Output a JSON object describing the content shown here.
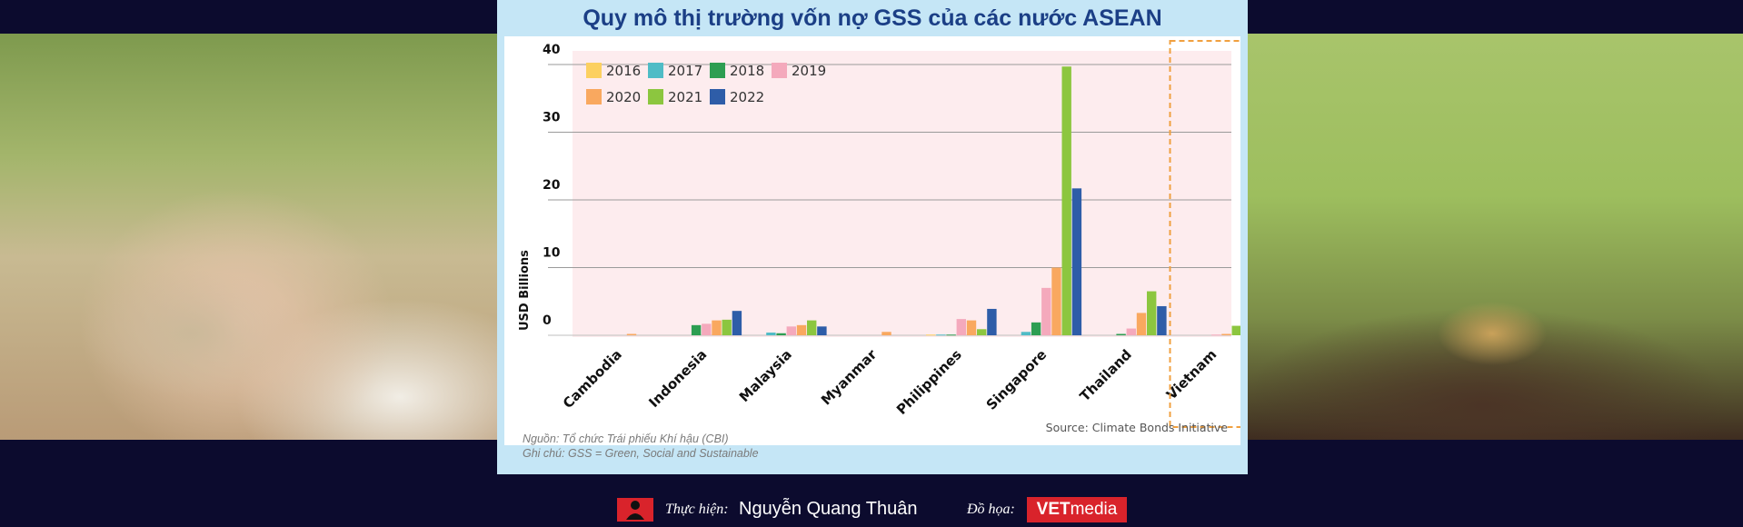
{
  "title": "Quy mô thị trường vốn nợ GSS của các nước ASEAN",
  "footnotes": {
    "source_vi": "Nguồn: Tổ chức Trái phiếu Khí hậu (CBI)",
    "note_vi": "Ghi chú: GSS = Green, Social and Sustainable",
    "source_en": "Source: Climate Bonds Initiative"
  },
  "credit": {
    "author_label": "Thực hiện:",
    "author_name": "Nguyễn Quang Thuân",
    "graphics_label": "Đồ họa:",
    "brand_bold": "VET",
    "brand_light": "media"
  },
  "images": {
    "left": "hands holding coins with a plant sprout",
    "right": "plant growing from stack of coins in soil"
  },
  "colors": {
    "title": "#1b3f86",
    "panel": "#c5e6f6",
    "plot_bg": "#fdecee",
    "highlight_box": "#f0a040",
    "brand": "#d9232b"
  },
  "chart_data": {
    "type": "bar",
    "title": "",
    "xlabel": "",
    "ylabel": "USD Billions",
    "ylim": [
      0,
      40
    ],
    "yticks": [
      "0",
      "10",
      "20",
      "30",
      "40"
    ],
    "grid": true,
    "legend_position": "top-left",
    "categories": [
      "Cambodia",
      "Indonesia",
      "Malaysia",
      "Myanmar",
      "Philippines",
      "Singapore",
      "Thailand",
      "Vietnam"
    ],
    "highlight_category": "Vietnam",
    "series": [
      {
        "name": "2016",
        "color": "#fcd060",
        "values": [
          0,
          0,
          0,
          0,
          0.1,
          0,
          0,
          0
        ]
      },
      {
        "name": "2017",
        "color": "#4fbcc6",
        "values": [
          0,
          0,
          0.4,
          0,
          0.1,
          0.5,
          0,
          0
        ]
      },
      {
        "name": "2018",
        "color": "#2d9e52",
        "values": [
          0,
          1.5,
          0.3,
          0,
          0.1,
          1.9,
          0.2,
          0
        ]
      },
      {
        "name": "2019",
        "color": "#f4a9bc",
        "values": [
          0,
          1.7,
          1.3,
          0,
          2.4,
          7.0,
          1.0,
          0.1
        ]
      },
      {
        "name": "2020",
        "color": "#f9a85f",
        "values": [
          0.2,
          2.2,
          1.5,
          0.5,
          2.2,
          10.0,
          3.3,
          0.2
        ]
      },
      {
        "name": "2021",
        "color": "#8cc63f",
        "values": [
          0,
          2.3,
          2.2,
          0,
          0.9,
          39.7,
          6.5,
          1.4
        ]
      },
      {
        "name": "2022",
        "color": "#2e5da8",
        "values": [
          0,
          3.6,
          1.3,
          0,
          3.9,
          21.7,
          4.3,
          1.0
        ]
      }
    ]
  }
}
